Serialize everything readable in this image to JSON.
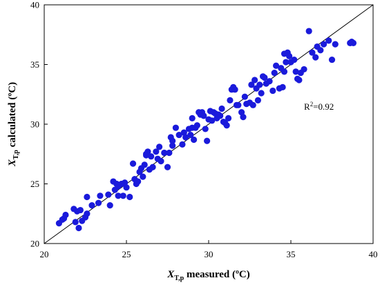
{
  "chart_data": {
    "type": "scatter",
    "xlabel": {
      "main": "X",
      "sub": "T,p",
      "rest": " measured (ºC)"
    },
    "ylabel": {
      "main": "X",
      "sub": "T,p",
      "rest": " calculated (ºC)"
    },
    "xlim": [
      20,
      40
    ],
    "ylim": [
      20,
      40
    ],
    "xticks": [
      20,
      25,
      30,
      35,
      40
    ],
    "yticks": [
      20,
      25,
      30,
      35,
      40
    ],
    "grid": false,
    "legend": "none",
    "point_color": "#1a1adb",
    "reference_line": {
      "from": [
        20,
        20
      ],
      "to": [
        40,
        40
      ],
      "color": "#000000"
    },
    "annotation": {
      "base": "R",
      "sup": "2",
      "rest": "=0.92",
      "at": [
        35.8,
        31.2
      ]
    },
    "points": [
      [
        20.9,
        21.7
      ],
      [
        21.1,
        22.0
      ],
      [
        21.3,
        22.4
      ],
      [
        21.2,
        22.1
      ],
      [
        21.8,
        22.9
      ],
      [
        22.0,
        22.7
      ],
      [
        21.9,
        21.8
      ],
      [
        22.1,
        21.3
      ],
      [
        22.2,
        22.8
      ],
      [
        22.5,
        22.2
      ],
      [
        22.6,
        22.5
      ],
      [
        22.6,
        23.9
      ],
      [
        22.9,
        23.2
      ],
      [
        22.3,
        21.9
      ],
      [
        23.3,
        23.4
      ],
      [
        23.4,
        24.0
      ],
      [
        23.9,
        24.1
      ],
      [
        24.0,
        23.2
      ],
      [
        24.2,
        25.2
      ],
      [
        24.3,
        24.5
      ],
      [
        24.5,
        24.0
      ],
      [
        24.5,
        24.8
      ],
      [
        24.4,
        25.0
      ],
      [
        24.7,
        25.0
      ],
      [
        24.8,
        24.0
      ],
      [
        24.9,
        25.1
      ],
      [
        25.0,
        24.7
      ],
      [
        25.2,
        23.9
      ],
      [
        25.4,
        26.7
      ],
      [
        25.5,
        25.4
      ],
      [
        25.6,
        25.0
      ],
      [
        25.7,
        25.2
      ],
      [
        25.8,
        26.0
      ],
      [
        25.9,
        26.3
      ],
      [
        26.0,
        25.6
      ],
      [
        26.1,
        26.6
      ],
      [
        26.2,
        27.5
      ],
      [
        26.3,
        27.7
      ],
      [
        26.4,
        26.2
      ],
      [
        26.5,
        27.3
      ],
      [
        26.6,
        26.4
      ],
      [
        26.8,
        27.7
      ],
      [
        26.9,
        27.1
      ],
      [
        27.0,
        28.1
      ],
      [
        27.1,
        26.9
      ],
      [
        27.3,
        27.6
      ],
      [
        27.5,
        26.4
      ],
      [
        27.6,
        27.6
      ],
      [
        27.7,
        28.9
      ],
      [
        27.8,
        28.2
      ],
      [
        27.8,
        28.6
      ],
      [
        28.0,
        29.7
      ],
      [
        28.2,
        29.1
      ],
      [
        28.4,
        28.3
      ],
      [
        28.5,
        29.3
      ],
      [
        28.6,
        28.9
      ],
      [
        28.8,
        29.6
      ],
      [
        28.9,
        29.1
      ],
      [
        29.0,
        30.5
      ],
      [
        29.1,
        28.7
      ],
      [
        29.2,
        29.7
      ],
      [
        29.3,
        29.9
      ],
      [
        29.4,
        31.0
      ],
      [
        29.5,
        30.8
      ],
      [
        29.6,
        31.0
      ],
      [
        29.7,
        30.7
      ],
      [
        29.8,
        29.6
      ],
      [
        29.9,
        28.6
      ],
      [
        30.0,
        30.4
      ],
      [
        30.1,
        31.1
      ],
      [
        30.2,
        30.3
      ],
      [
        30.3,
        31.0
      ],
      [
        30.4,
        30.9
      ],
      [
        30.5,
        30.5
      ],
      [
        30.6,
        30.8
      ],
      [
        30.7,
        30.7
      ],
      [
        30.8,
        31.3
      ],
      [
        30.9,
        30.2
      ],
      [
        31.0,
        30.1
      ],
      [
        31.1,
        29.9
      ],
      [
        31.2,
        30.5
      ],
      [
        31.3,
        32.0
      ],
      [
        31.4,
        32.9
      ],
      [
        31.5,
        33.1
      ],
      [
        31.6,
        32.9
      ],
      [
        31.7,
        31.6
      ],
      [
        31.8,
        31.6
      ],
      [
        32.0,
        31.0
      ],
      [
        32.1,
        30.6
      ],
      [
        32.2,
        32.3
      ],
      [
        32.3,
        31.7
      ],
      [
        32.5,
        31.8
      ],
      [
        32.6,
        33.3
      ],
      [
        32.7,
        31.6
      ],
      [
        32.8,
        33.7
      ],
      [
        32.9,
        33.0
      ],
      [
        33.0,
        32.0
      ],
      [
        33.1,
        33.3
      ],
      [
        33.2,
        32.6
      ],
      [
        33.4,
        33.9
      ],
      [
        33.5,
        33.4
      ],
      [
        33.7,
        33.6
      ],
      [
        33.9,
        32.8
      ],
      [
        34.0,
        34.3
      ],
      [
        34.1,
        34.9
      ],
      [
        34.3,
        33.0
      ],
      [
        34.4,
        34.7
      ],
      [
        34.5,
        33.1
      ],
      [
        34.6,
        34.4
      ],
      [
        34.7,
        35.2
      ],
      [
        34.8,
        36.0
      ],
      [
        34.9,
        35.7
      ],
      [
        35.0,
        35.2
      ],
      [
        35.2,
        35.4
      ],
      [
        35.3,
        34.4
      ],
      [
        35.4,
        33.8
      ],
      [
        35.5,
        33.7
      ],
      [
        35.6,
        34.3
      ],
      [
        35.8,
        34.6
      ],
      [
        36.1,
        37.8
      ],
      [
        36.3,
        36.0
      ],
      [
        36.5,
        35.6
      ],
      [
        36.6,
        36.5
      ],
      [
        36.8,
        36.2
      ],
      [
        37.0,
        36.7
      ],
      [
        37.3,
        37.0
      ],
      [
        37.5,
        35.4
      ],
      [
        37.7,
        36.7
      ],
      [
        38.6,
        36.8
      ],
      [
        38.7,
        36.9
      ],
      [
        38.8,
        36.8
      ],
      [
        34.6,
        35.9
      ],
      [
        33.3,
        34.0
      ],
      [
        29.0,
        29.7
      ],
      [
        26.2,
        27.4
      ]
    ]
  }
}
